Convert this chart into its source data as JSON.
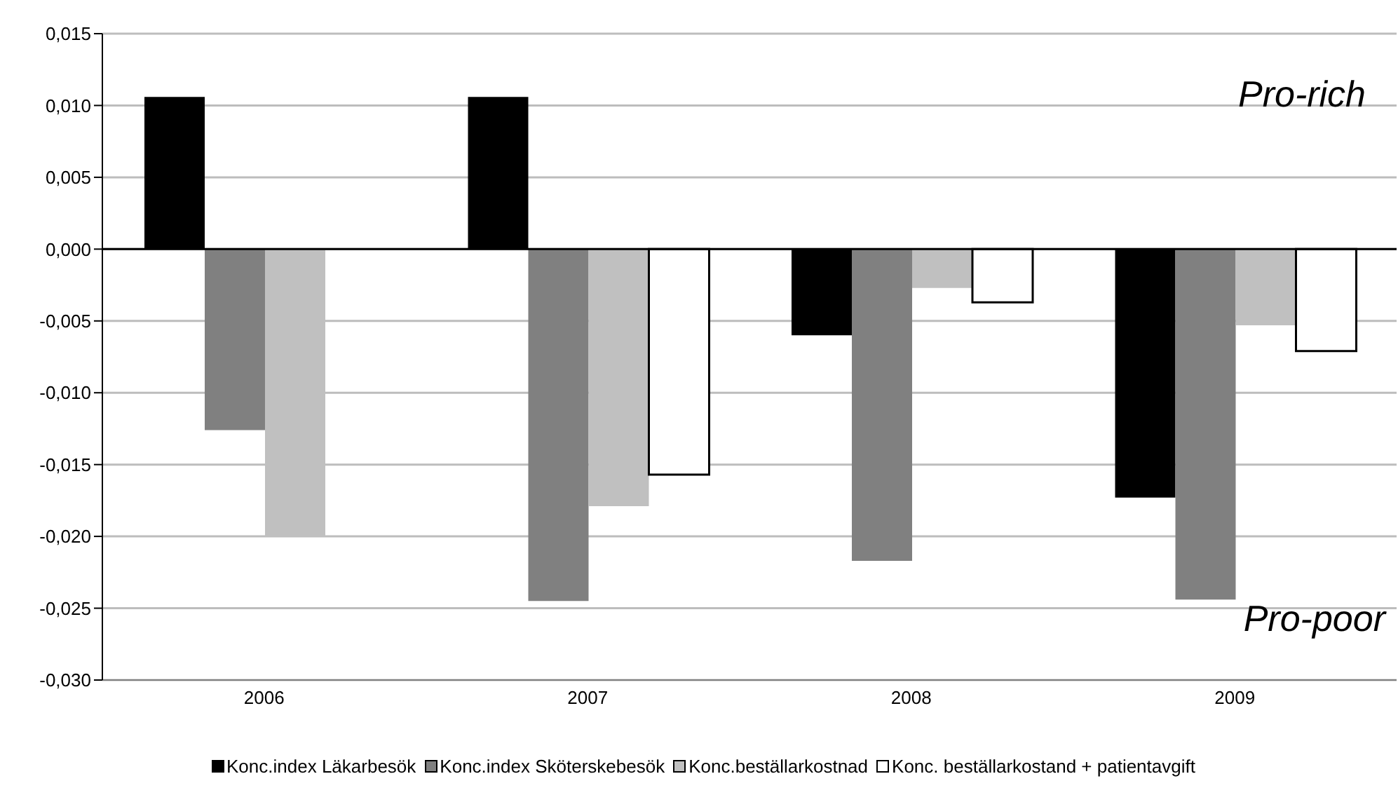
{
  "chart_data": {
    "type": "bar",
    "categories": [
      "2006",
      "2007",
      "2008",
      "2009"
    ],
    "series": [
      {
        "name": "Konc.index Läkarbesök",
        "color": "#000000",
        "values": [
          0.0106,
          0.0106,
          -0.006,
          -0.0173
        ]
      },
      {
        "name": "Konc.index Sköterskebesök",
        "color": "#808080",
        "values": [
          -0.0126,
          -0.0245,
          -0.0217,
          -0.0244
        ]
      },
      {
        "name": "Konc.beställarkostnad",
        "color": "#c0c0c0",
        "values": [
          -0.02,
          -0.0179,
          -0.0027,
          -0.0053
        ]
      },
      {
        "name": "Konc. beställarkostand + patientavgift",
        "color": "#ffffff",
        "values": [
          null,
          -0.0157,
          -0.0037,
          -0.0071
        ]
      }
    ],
    "ylim": [
      -0.03,
      0.015
    ],
    "yticks": [
      {
        "value": -0.03,
        "label": "-0,030"
      },
      {
        "value": -0.025,
        "label": "-0,025"
      },
      {
        "value": -0.02,
        "label": "-0,020"
      },
      {
        "value": -0.015,
        "label": "-0,015"
      },
      {
        "value": -0.01,
        "label": "-0,010"
      },
      {
        "value": -0.005,
        "label": "-0,005"
      },
      {
        "value": 0,
        "label": "0,000"
      },
      {
        "value": 0.005,
        "label": "0,005"
      },
      {
        "value": 0.01,
        "label": "0,010"
      },
      {
        "value": 0.015,
        "label": "0,015"
      }
    ],
    "annotations": [
      "Pro-rich",
      "Pro-poor"
    ],
    "grid": "y",
    "legend": "bottom"
  }
}
